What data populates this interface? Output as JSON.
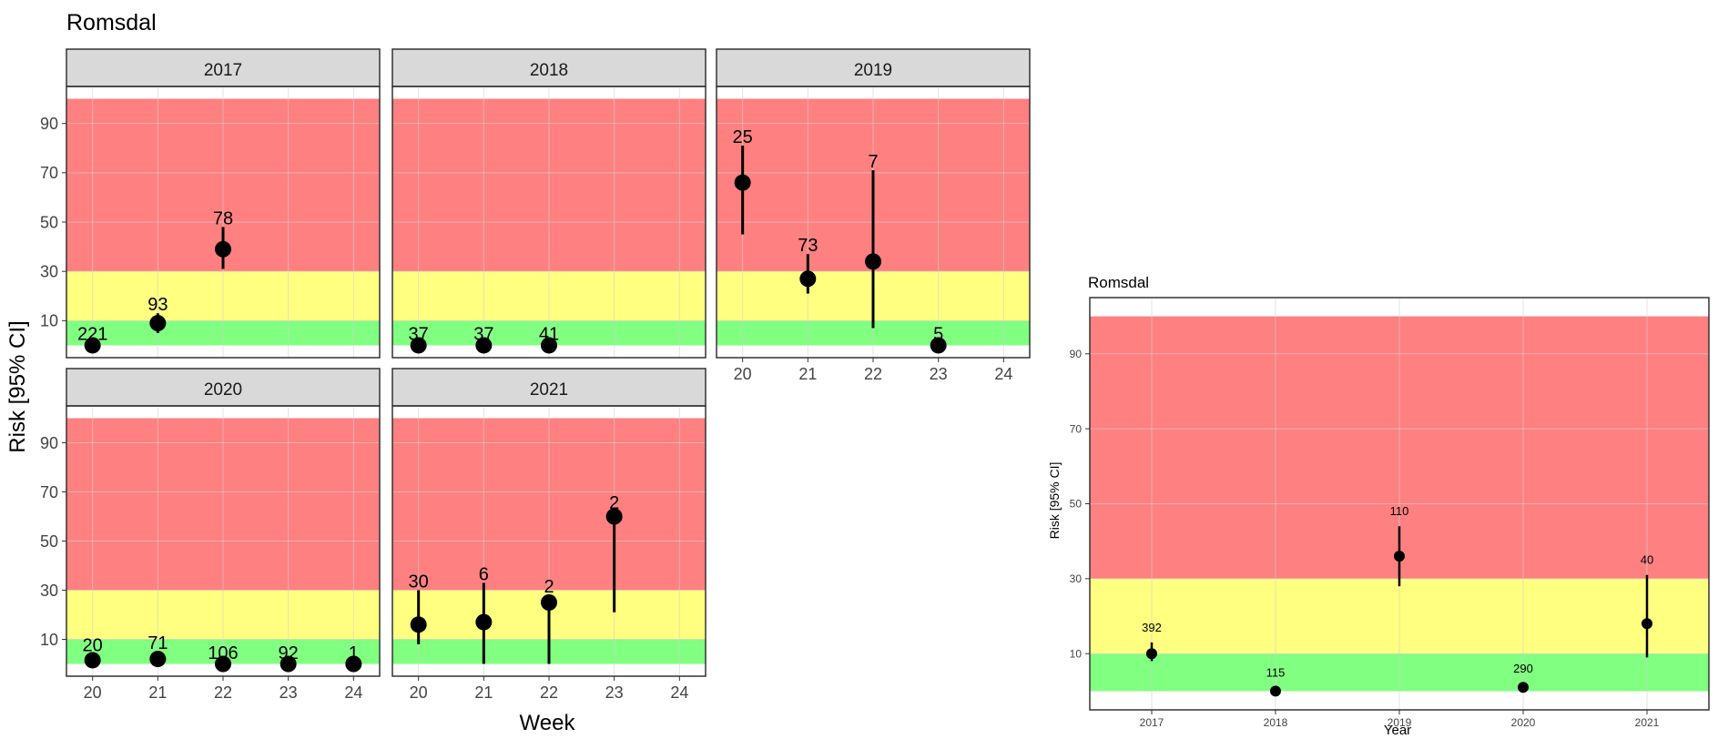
{
  "colors": {
    "red_zone": "#ff8080",
    "yellow_zone": "#ffff80",
    "green_zone": "#80ff80",
    "strip_bg": "#d9d9d9",
    "point": "#000000",
    "grid": "#d0d0d0"
  },
  "chart_data": [
    {
      "type": "scatter",
      "title": "Romsdal",
      "xlabel": "Week",
      "ylabel": "Risk [95% CI]",
      "xlim": [
        19.6,
        24.4
      ],
      "ylim": [
        -5,
        105
      ],
      "x_ticks": [
        20,
        21,
        22,
        23,
        24
      ],
      "y_ticks": [
        10,
        30,
        50,
        70,
        90
      ],
      "zones": [
        {
          "name": "green",
          "from": 0,
          "to": 10
        },
        {
          "name": "yellow",
          "from": 10,
          "to": 30
        },
        {
          "name": "red",
          "from": 30,
          "to": 100
        }
      ],
      "facets": [
        {
          "label": "2017",
          "points": [
            {
              "x": 20,
              "y": 0,
              "lo": 0,
              "hi": 1,
              "n": "221"
            },
            {
              "x": 21,
              "y": 9,
              "lo": 5,
              "hi": 13,
              "n": "93"
            },
            {
              "x": 22,
              "y": 39,
              "lo": 31,
              "hi": 48,
              "n": "78"
            }
          ]
        },
        {
          "label": "2018",
          "points": [
            {
              "x": 20,
              "y": 0,
              "lo": 0,
              "hi": 1,
              "n": "37"
            },
            {
              "x": 21,
              "y": 0,
              "lo": 0,
              "hi": 1,
              "n": "37"
            },
            {
              "x": 22,
              "y": 0,
              "lo": 0,
              "hi": 1,
              "n": "41"
            }
          ]
        },
        {
          "label": "2019",
          "points": [
            {
              "x": 20,
              "y": 66,
              "lo": 45,
              "hi": 81,
              "n": "25"
            },
            {
              "x": 21,
              "y": 27,
              "lo": 21,
              "hi": 37,
              "n": "73"
            },
            {
              "x": 22,
              "y": 34,
              "lo": 7,
              "hi": 71,
              "n": "7"
            },
            {
              "x": 23,
              "y": 0,
              "lo": 0,
              "hi": 1,
              "n": "5"
            }
          ]
        },
        {
          "label": "2020",
          "points": [
            {
              "x": 20,
              "y": 1.5,
              "lo": 0,
              "hi": 4,
              "n": "20"
            },
            {
              "x": 21,
              "y": 2,
              "lo": 0,
              "hi": 5,
              "n": "71"
            },
            {
              "x": 22,
              "y": 0,
              "lo": 0,
              "hi": 1,
              "n": "106"
            },
            {
              "x": 23,
              "y": 0,
              "lo": 0,
              "hi": 1,
              "n": "92"
            },
            {
              "x": 24,
              "y": 0,
              "lo": 0,
              "hi": 1,
              "n": "1"
            }
          ]
        },
        {
          "label": "2021",
          "points": [
            {
              "x": 20,
              "y": 16,
              "lo": 8,
              "hi": 30,
              "n": "30"
            },
            {
              "x": 21,
              "y": 17,
              "lo": 0,
              "hi": 33,
              "n": "6"
            },
            {
              "x": 22,
              "y": 25,
              "lo": 0,
              "hi": 28,
              "n": "2"
            },
            {
              "x": 23,
              "y": 60,
              "lo": 21,
              "hi": 62,
              "n": "2"
            }
          ]
        }
      ]
    },
    {
      "type": "scatter",
      "title": "Romsdal",
      "xlabel": "Year",
      "ylabel": "Risk [95% CI]",
      "xlim": [
        2016.5,
        2021.5
      ],
      "ylim": [
        -5,
        105
      ],
      "x_ticks": [
        2017,
        2018,
        2019,
        2020,
        2021
      ],
      "y_ticks": [
        10,
        30,
        50,
        70,
        90
      ],
      "zones": [
        {
          "name": "green",
          "from": 0,
          "to": 10
        },
        {
          "name": "yellow",
          "from": 10,
          "to": 30
        },
        {
          "name": "red",
          "from": 30,
          "to": 100
        }
      ],
      "points": [
        {
          "x": 2017,
          "y": 10,
          "lo": 8,
          "hi": 13,
          "n": "392"
        },
        {
          "x": 2018,
          "y": 0,
          "lo": 0,
          "hi": 1,
          "n": "115"
        },
        {
          "x": 2019,
          "y": 36,
          "lo": 28,
          "hi": 44,
          "n": "110"
        },
        {
          "x": 2020,
          "y": 1,
          "lo": 0,
          "hi": 2,
          "n": "290"
        },
        {
          "x": 2021,
          "y": 18,
          "lo": 9,
          "hi": 31,
          "n": "40"
        }
      ]
    }
  ]
}
